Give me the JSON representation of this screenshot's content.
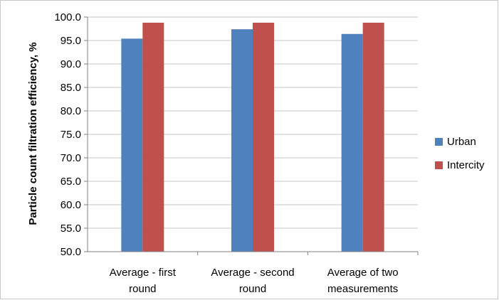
{
  "chart_data": {
    "type": "bar",
    "title": "",
    "xlabel": "",
    "ylabel": "Particle count filtration efficiency, %",
    "ylim": [
      50,
      100
    ],
    "ytick_step": 5,
    "ytick_labels": [
      "50.0",
      "55.0",
      "60.0",
      "65.0",
      "70.0",
      "75.0",
      "80.0",
      "85.0",
      "90.0",
      "95.0",
      "100.0"
    ],
    "grid": true,
    "legend_position": "right",
    "categories": [
      [
        "Average - first",
        "round"
      ],
      [
        "Average - second",
        "round"
      ],
      [
        "Average of two",
        "measurements"
      ]
    ],
    "series": [
      {
        "name": "Urban",
        "color": "#4f81bd",
        "values": [
          95.4,
          97.4,
          96.4
        ]
      },
      {
        "name": "Intercity",
        "color": "#c0504d",
        "values": [
          98.8,
          98.8,
          98.8
        ]
      }
    ]
  }
}
